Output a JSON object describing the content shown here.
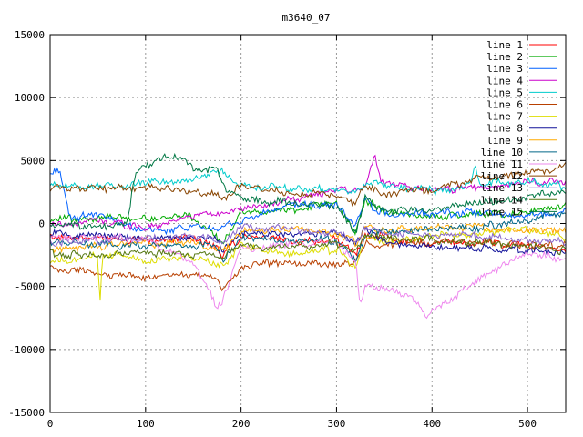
{
  "chart_data": {
    "type": "line",
    "title": "m3640_07",
    "xlabel": "",
    "ylabel": "",
    "xlim": [
      0,
      540
    ],
    "ylim": [
      -15000,
      15000
    ],
    "xticks": [
      0,
      100,
      200,
      300,
      400,
      500
    ],
    "yticks": [
      -15000,
      -10000,
      -5000,
      0,
      5000,
      10000,
      15000
    ],
    "xtick_labels": [
      "0",
      "100",
      "200",
      "300",
      "400",
      "500"
    ],
    "ytick_labels": [
      "-15000",
      "-10000",
      "-5000",
      "0",
      "5000",
      "10000",
      "15000"
    ],
    "grid": true,
    "legend_position": "top-right",
    "series": [
      {
        "name": "line 1",
        "color": "#ff0000",
        "x": [
          0,
          50,
          100,
          150,
          175,
          180,
          200,
          250,
          300,
          320,
          330,
          350,
          400,
          450,
          500,
          540
        ],
        "values": [
          -1000,
          -1200,
          -1300,
          -1200,
          -1800,
          -2500,
          -1000,
          -1500,
          -1200,
          -2500,
          -800,
          -1000,
          -1600,
          -1500,
          -1800,
          -2000
        ]
      },
      {
        "name": "line 2",
        "color": "#00aa00",
        "x": [
          0,
          50,
          100,
          150,
          180,
          200,
          250,
          300,
          320,
          330,
          350,
          400,
          450,
          500,
          540
        ],
        "values": [
          200,
          500,
          400,
          600,
          -1500,
          800,
          1000,
          1600,
          -1000,
          2000,
          800,
          500,
          700,
          900,
          1500
        ]
      },
      {
        "name": "line 3",
        "color": "#0060ff",
        "x": [
          0,
          10,
          20,
          50,
          100,
          150,
          175,
          200,
          250,
          300,
          320,
          330,
          350,
          400,
          450,
          500,
          540
        ],
        "values": [
          4000,
          4200,
          600,
          500,
          -600,
          -300,
          -400,
          200,
          1500,
          1400,
          -300,
          1800,
          700,
          800,
          800,
          600,
          900
        ]
      },
      {
        "name": "line 4",
        "color": "#cc00cc",
        "x": [
          0,
          50,
          100,
          150,
          180,
          200,
          250,
          300,
          330,
          340,
          345,
          350,
          400,
          450,
          500,
          540
        ],
        "values": [
          -200,
          200,
          -300,
          600,
          800,
          1200,
          1800,
          2600,
          2800,
          5500,
          3800,
          3300,
          2600,
          2900,
          3200,
          3400
        ]
      },
      {
        "name": "line 5",
        "color": "#00cccc",
        "x": [
          0,
          50,
          100,
          150,
          180,
          200,
          250,
          300,
          320,
          340,
          350,
          400,
          440,
          445,
          450,
          500,
          540
        ],
        "values": [
          3000,
          2900,
          3200,
          3400,
          4200,
          3000,
          2800,
          2700,
          2500,
          3400,
          3000,
          2600,
          3000,
          4900,
          3200,
          3300,
          2900
        ]
      },
      {
        "name": "line 6",
        "color": "#b84000",
        "x": [
          0,
          50,
          100,
          150,
          175,
          180,
          200,
          250,
          300,
          320,
          330,
          350,
          400,
          450,
          500,
          540
        ],
        "values": [
          -3500,
          -4000,
          -4200,
          -4000,
          -4500,
          -5200,
          -3400,
          -3000,
          -3300,
          -3000,
          -1500,
          -1600,
          -1500,
          -1400,
          -1700,
          -1800
        ]
      },
      {
        "name": "line 7",
        "color": "#dddd00",
        "x": [
          0,
          50,
          52,
          55,
          100,
          150,
          180,
          200,
          250,
          300,
          320,
          330,
          350,
          400,
          450,
          500,
          540
        ],
        "values": [
          -3000,
          -2500,
          -6800,
          -2400,
          -2800,
          -2700,
          -3500,
          -1800,
          -2500,
          -2000,
          -3500,
          -1200,
          -1500,
          -1000,
          -800,
          -400,
          -1200
        ]
      },
      {
        "name": "line 8",
        "color": "#111199",
        "x": [
          0,
          50,
          100,
          150,
          175,
          180,
          200,
          250,
          300,
          320,
          330,
          350,
          400,
          450,
          500,
          540
        ],
        "values": [
          -800,
          -1000,
          -1200,
          -1100,
          -1200,
          -2300,
          -700,
          -900,
          -600,
          -1800,
          -400,
          -1500,
          -1800,
          -2000,
          -2100,
          -2300
        ]
      },
      {
        "name": "line 9",
        "color": "#ffaa00",
        "x": [
          0,
          50,
          100,
          150,
          180,
          200,
          250,
          300,
          320,
          330,
          350,
          400,
          450,
          500,
          540
        ],
        "values": [
          -2000,
          -1800,
          -1600,
          -1500,
          -2200,
          -600,
          -400,
          -800,
          -1500,
          -200,
          -500,
          -400,
          -300,
          -600,
          -400
        ]
      },
      {
        "name": "line 10",
        "color": "#006688",
        "x": [
          0,
          50,
          100,
          150,
          175,
          180,
          200,
          250,
          300,
          320,
          330,
          350,
          400,
          450,
          500,
          540
        ],
        "values": [
          -1500,
          -1700,
          -1800,
          -1700,
          -1900,
          -3000,
          -1200,
          -1400,
          -1300,
          -2800,
          -900,
          -700,
          -500,
          -300,
          200,
          1000
        ]
      },
      {
        "name": "line 11",
        "color": "#ee88ee",
        "x": [
          0,
          50,
          100,
          150,
          165,
          175,
          180,
          200,
          250,
          300,
          320,
          325,
          330,
          350,
          380,
          395,
          400,
          450,
          500,
          540
        ],
        "values": [
          -1000,
          -1100,
          -1300,
          -3200,
          -5000,
          -6800,
          -6400,
          -2000,
          -1700,
          -1500,
          -3000,
          -6500,
          -4800,
          -5200,
          -5800,
          -7500,
          -7000,
          -4500,
          -2400,
          -2800
        ]
      },
      {
        "name": "line 12",
        "color": "#884400",
        "x": [
          0,
          50,
          100,
          150,
          175,
          180,
          200,
          250,
          300,
          320,
          330,
          350,
          400,
          450,
          500,
          540
        ],
        "values": [
          2800,
          2700,
          2900,
          2500,
          2300,
          1800,
          3000,
          2500,
          2200,
          1500,
          3000,
          2200,
          2700,
          3600,
          4000,
          4600
        ]
      },
      {
        "name": "line 13",
        "color": "#8866cc",
        "x": [
          0,
          50,
          100,
          150,
          180,
          200,
          250,
          300,
          320,
          330,
          350,
          400,
          450,
          500,
          540
        ],
        "values": [
          -1500,
          -1400,
          -1200,
          -1000,
          -1500,
          -300,
          -500,
          -800,
          -1300,
          -300,
          -700,
          -900,
          -1000,
          -1200,
          -1500
        ]
      },
      {
        "name": "line 14",
        "color": "#557711",
        "x": [
          0,
          50,
          100,
          150,
          160,
          180,
          200,
          250,
          300,
          320,
          330,
          350,
          400,
          450,
          500,
          540
        ],
        "values": [
          -2400,
          -2500,
          -2300,
          -2500,
          -2200,
          -2800,
          -1700,
          -1900,
          -1600,
          -2000,
          -900,
          -1200,
          -1300,
          -1500,
          -1800,
          -2200
        ]
      },
      {
        "name": "line 15",
        "color": "#007744",
        "x": [
          0,
          50,
          80,
          90,
          100,
          120,
          130,
          150,
          175,
          180,
          200,
          250,
          300,
          320,
          330,
          350,
          400,
          450,
          500,
          540
        ],
        "values": [
          -200,
          -300,
          0,
          4000,
          4500,
          5300,
          5400,
          4500,
          4200,
          3000,
          2000,
          1600,
          1400,
          -700,
          2000,
          900,
          1200,
          1600,
          2100,
          2500
        ]
      }
    ]
  }
}
